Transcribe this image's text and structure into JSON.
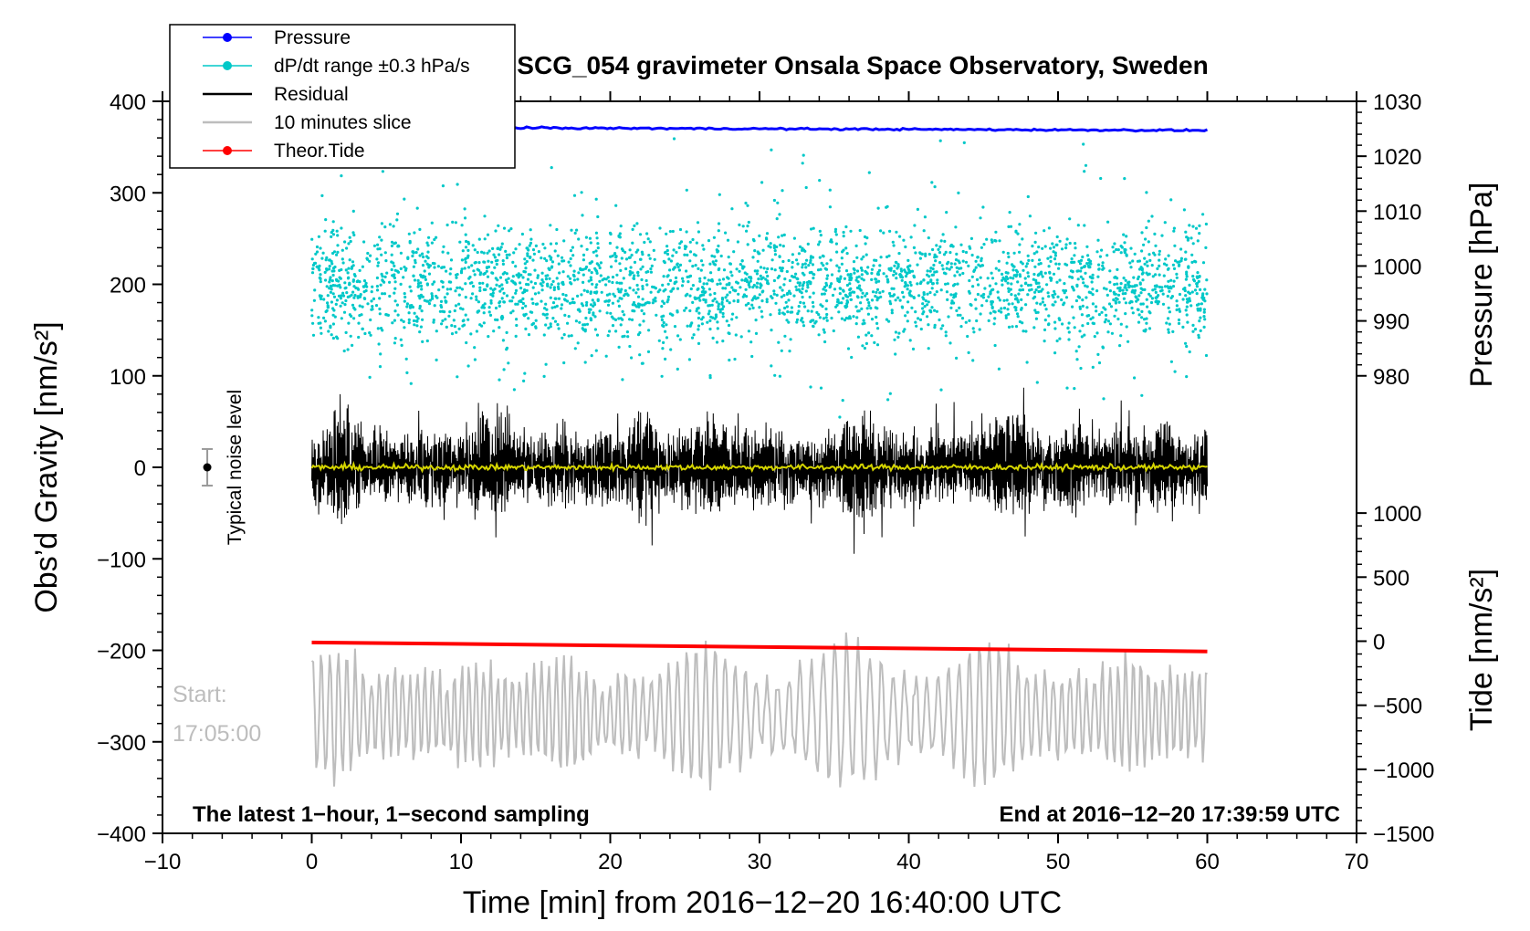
{
  "chart_data": {
    "type": "line",
    "title": "SCG_054 gravimeter Onsala Space Observatory, Sweden",
    "xlabel": "Time [min] from 2016−12−20 16:40:00 UTC",
    "ylabel_left": "Obs’d Gravity [nm/s²]",
    "ylabel_right_top": "Pressure [hPa]",
    "ylabel_right_bottom": "Tide [nm/s²]",
    "xlim": [
      -10,
      70
    ],
    "ylim": [
      -400,
      400
    ],
    "pressure_axis_range": [
      980,
      1030
    ],
    "tide_axis_range": [
      -1500,
      1000
    ],
    "x_ticks": [
      "−10",
      "0",
      "10",
      "20",
      "30",
      "40",
      "50",
      "60",
      "70"
    ],
    "y_ticks": [
      "400",
      "300",
      "200",
      "100",
      "0",
      "−100",
      "−200",
      "−300",
      "−400"
    ],
    "pressure_ticks": [
      "1030",
      "1020",
      "1010",
      "1000",
      "990",
      "980"
    ],
    "tide_ticks": [
      "1000",
      "500",
      "0",
      "−500",
      "−1000",
      "−1500"
    ],
    "legend": {
      "position": "top-left",
      "entries": [
        {
          "label": "Pressure",
          "color": "#0000ff",
          "marker": true
        },
        {
          "label": "dP/dt range ±0.3 hPa/s",
          "color": "#00c8c8",
          "marker": true
        },
        {
          "label": "Residual",
          "color": "#000000",
          "marker": false
        },
        {
          "label": "10 minutes slice",
          "color": "#bdbdbd",
          "marker": false
        },
        {
          "label": "Theor.Tide",
          "color": "#ff0000",
          "marker": true
        }
      ]
    },
    "series": [
      {
        "name": "Pressure",
        "color": "#0000ff",
        "unit": "hPa",
        "start": [
          0,
          1025.3
        ],
        "end": [
          60,
          1024.7
        ]
      },
      {
        "name": "dP/dt",
        "color": "#00c8c8",
        "center_gravity": 200,
        "spread_gravity": 110
      },
      {
        "name": "Residual",
        "color": "#000000",
        "center_gravity": 0,
        "amplitude_gravity": 140
      },
      {
        "name": "Residual smoothed",
        "color": "#d4d400",
        "center_gravity": 0
      },
      {
        "name": "10 minutes slice",
        "color": "#bdbdbd",
        "center_gravity": -270,
        "amplitude_gravity": 80
      },
      {
        "name": "Theor.Tide",
        "color": "#ff0000",
        "unit": "nm/s²",
        "start": [
          0,
          -10
        ],
        "end": [
          60,
          -80
        ]
      }
    ],
    "noise_marker": {
      "label": "Typical noise level",
      "x": -7,
      "y": 0,
      "error": 20
    },
    "annotations": {
      "bottom_left": "The latest 1−hour, 1−second sampling",
      "bottom_right": "End at 2016−12−20 17:39:59 UTC",
      "start_label": "Start:",
      "start_time": "17:05:00"
    }
  }
}
